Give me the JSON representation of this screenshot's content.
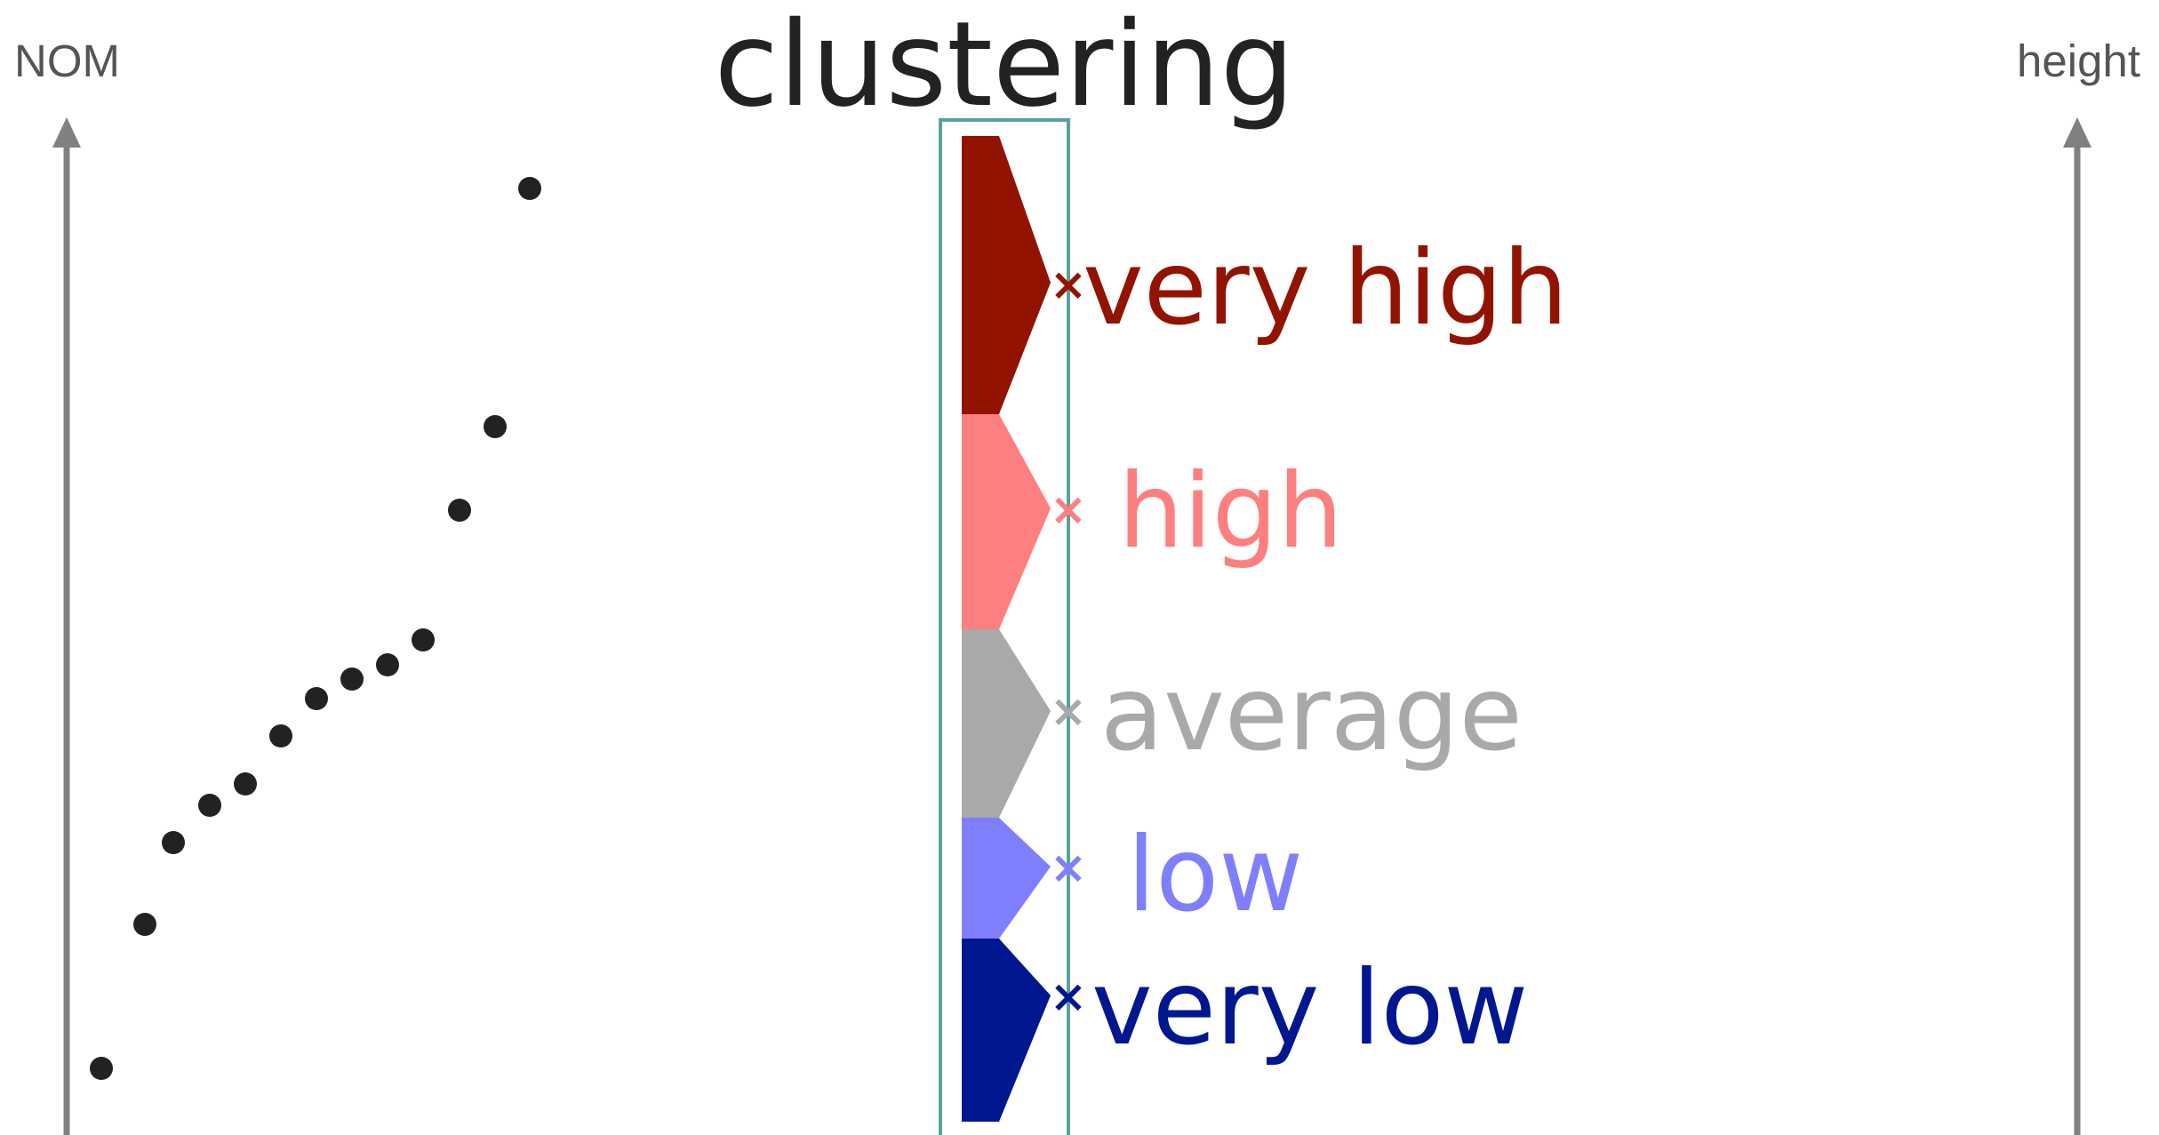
{
  "title": "clustering",
  "left_axis": {
    "label": "NOM"
  },
  "right_axis": {
    "label": "height"
  },
  "clusters": [
    {
      "label": "very high",
      "color": "#921300",
      "marker": "×"
    },
    {
      "label": "high",
      "color": "#fe7f7f",
      "marker": "×"
    },
    {
      "label": "average",
      "color": "#a9a9a9",
      "marker": "×"
    },
    {
      "label": "low",
      "color": "#7f7ffe",
      "marker": "×"
    },
    {
      "label": "very low",
      "color": "#011790",
      "marker": "×"
    }
  ],
  "colors": {
    "axis": "#808080",
    "points": "#222222",
    "frame": "#5aa0a0"
  },
  "points_count": 14
}
